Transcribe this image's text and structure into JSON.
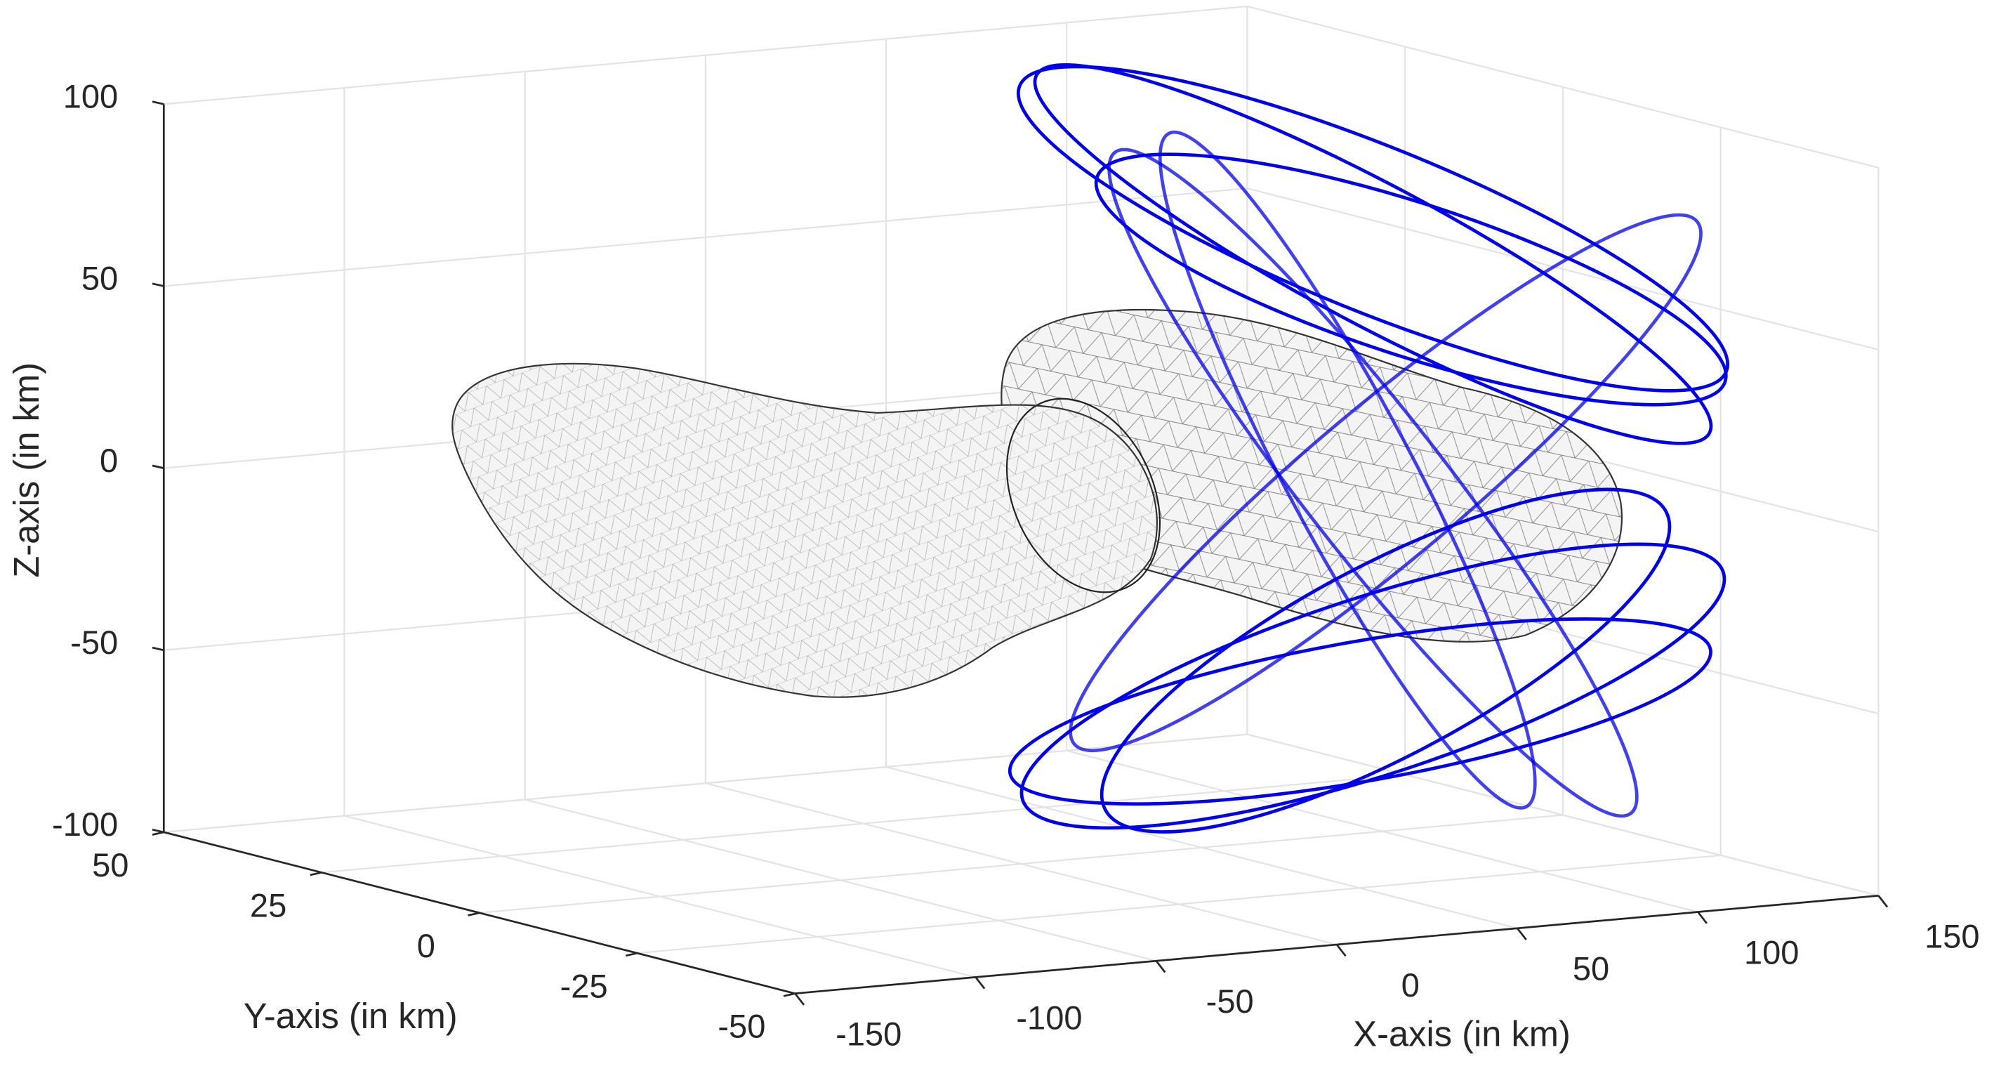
{
  "chart_data": {
    "type": "line3d",
    "xlabel": "X-axis (in km)",
    "ylabel": "Y-axis (in km)",
    "zlabel": "Z-axis (in km)",
    "xlim": [
      -150,
      150
    ],
    "ylim": [
      -50,
      50
    ],
    "zlim": [
      -100,
      100
    ],
    "xticks": [
      -150,
      -100,
      -50,
      0,
      50,
      100,
      150
    ],
    "yticks": [
      -50,
      -25,
      0,
      25,
      50
    ],
    "zticks": [
      -100,
      -50,
      0,
      50,
      100
    ],
    "grid": true,
    "color": "#0000ee"
  }
}
